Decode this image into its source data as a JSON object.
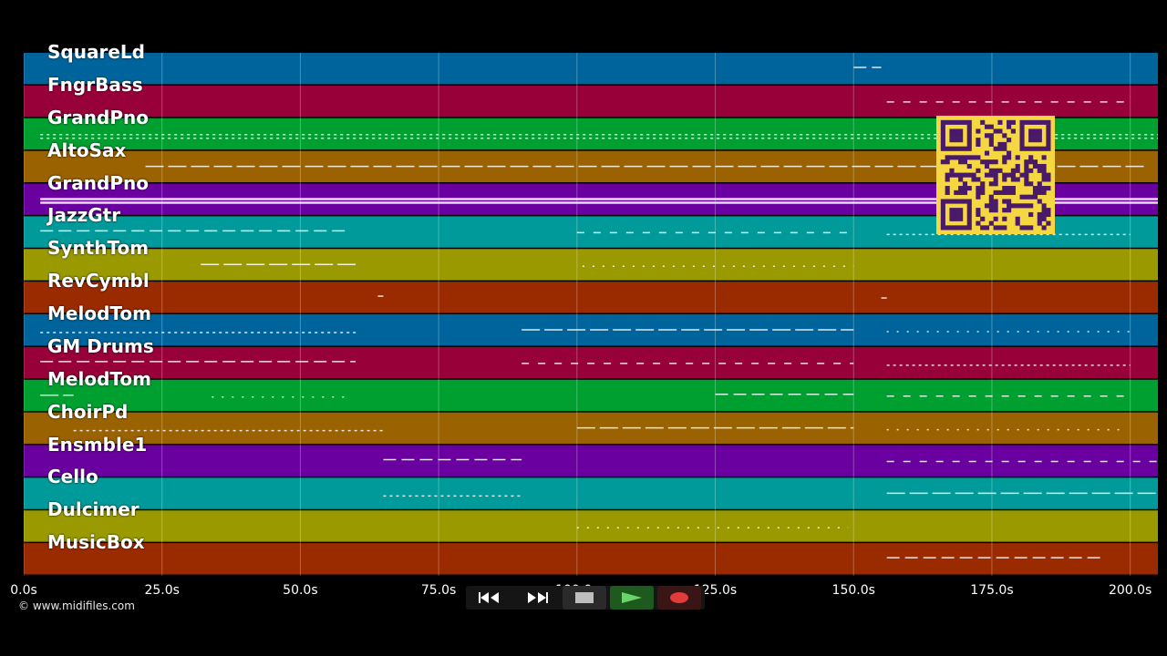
{
  "tracks": [
    {
      "name": "SquareLd",
      "color": "#00649c"
    },
    {
      "name": "FngrBass",
      "color": "#98003a"
    },
    {
      "name": "GrandPno",
      "color": "#00a030"
    },
    {
      "name": "AltoSax",
      "color": "#9a6200"
    },
    {
      "name": "GrandPno",
      "color": "#6a00a0"
    },
    {
      "name": "JazzGtr",
      "color": "#009a9a"
    },
    {
      "name": "SynthTom",
      "color": "#9a9a00"
    },
    {
      "name": "RevCymbl",
      "color": "#9a2a00"
    },
    {
      "name": "MelodTom",
      "color": "#00649c"
    },
    {
      "name": "GM Drums",
      "color": "#98003a"
    },
    {
      "name": "MelodTom",
      "color": "#00a030"
    },
    {
      "name": "ChoirPd",
      "color": "#9a6200"
    },
    {
      "name": "Ensmble1",
      "color": "#6a00a0"
    },
    {
      "name": "Cello",
      "color": "#009a9a"
    },
    {
      "name": "Dulcimer",
      "color": "#9a9a00"
    },
    {
      "name": "MusicBox",
      "color": "#9a2a00"
    }
  ],
  "time_axis": {
    "min": 0,
    "max": 205,
    "ticks": [
      {
        "value": 0,
        "label": "0.0s"
      },
      {
        "value": 25,
        "label": "25.0s"
      },
      {
        "value": 50,
        "label": "50.0s"
      },
      {
        "value": 75,
        "label": "75.0s"
      },
      {
        "value": 100,
        "label": "100.0s"
      },
      {
        "value": 125,
        "label": "125.0s"
      },
      {
        "value": 150,
        "label": "150.0s"
      },
      {
        "value": 175,
        "label": "175.0s"
      },
      {
        "value": 200,
        "label": "200.0s"
      }
    ]
  },
  "note_segments": [
    {
      "track": 0,
      "start": 150,
      "end": 155
    },
    {
      "track": 1,
      "start": 156,
      "end": 200
    },
    {
      "track": 2,
      "start": 3,
      "end": 205
    },
    {
      "track": 3,
      "start": 22,
      "end": 203
    },
    {
      "track": 4,
      "start": 3,
      "end": 205
    },
    {
      "track": 5,
      "start": 3,
      "end": 59
    },
    {
      "track": 5,
      "start": 100,
      "end": 150
    },
    {
      "track": 5,
      "start": 156,
      "end": 200
    },
    {
      "track": 6,
      "start": 32,
      "end": 60
    },
    {
      "track": 6,
      "start": 101,
      "end": 150
    },
    {
      "track": 7,
      "start": 64,
      "end": 65
    },
    {
      "track": 7,
      "start": 155,
      "end": 156
    },
    {
      "track": 8,
      "start": 3,
      "end": 60
    },
    {
      "track": 8,
      "start": 90,
      "end": 150
    },
    {
      "track": 8,
      "start": 156,
      "end": 200
    },
    {
      "track": 9,
      "start": 3,
      "end": 60
    },
    {
      "track": 9,
      "start": 90,
      "end": 150
    },
    {
      "track": 9,
      "start": 156,
      "end": 200
    },
    {
      "track": 10,
      "start": 3,
      "end": 9
    },
    {
      "track": 10,
      "start": 34,
      "end": 59
    },
    {
      "track": 10,
      "start": 125,
      "end": 150
    },
    {
      "track": 10,
      "start": 156,
      "end": 200
    },
    {
      "track": 11,
      "start": 9,
      "end": 65
    },
    {
      "track": 11,
      "start": 100,
      "end": 150
    },
    {
      "track": 11,
      "start": 156,
      "end": 198
    },
    {
      "track": 12,
      "start": 65,
      "end": 90
    },
    {
      "track": 12,
      "start": 156,
      "end": 205
    },
    {
      "track": 13,
      "start": 65,
      "end": 90
    },
    {
      "track": 13,
      "start": 156,
      "end": 205
    },
    {
      "track": 14,
      "start": 100,
      "end": 149
    },
    {
      "track": 15,
      "start": 156,
      "end": 195
    }
  ],
  "transport": {
    "buttons": [
      {
        "name": "rewind-button",
        "icon": "rewind-icon"
      },
      {
        "name": "fast-forward-button",
        "icon": "fast-forward-icon"
      },
      {
        "name": "stop-button",
        "icon": "stop-icon"
      },
      {
        "name": "play-button",
        "icon": "play-icon"
      },
      {
        "name": "record-button",
        "icon": "record-icon"
      }
    ]
  },
  "copyright": "© www.midifiles.com",
  "qr_code": {
    "icon": "qr-code-icon",
    "color": "#f5d742",
    "dark": "#4a1a6a"
  }
}
